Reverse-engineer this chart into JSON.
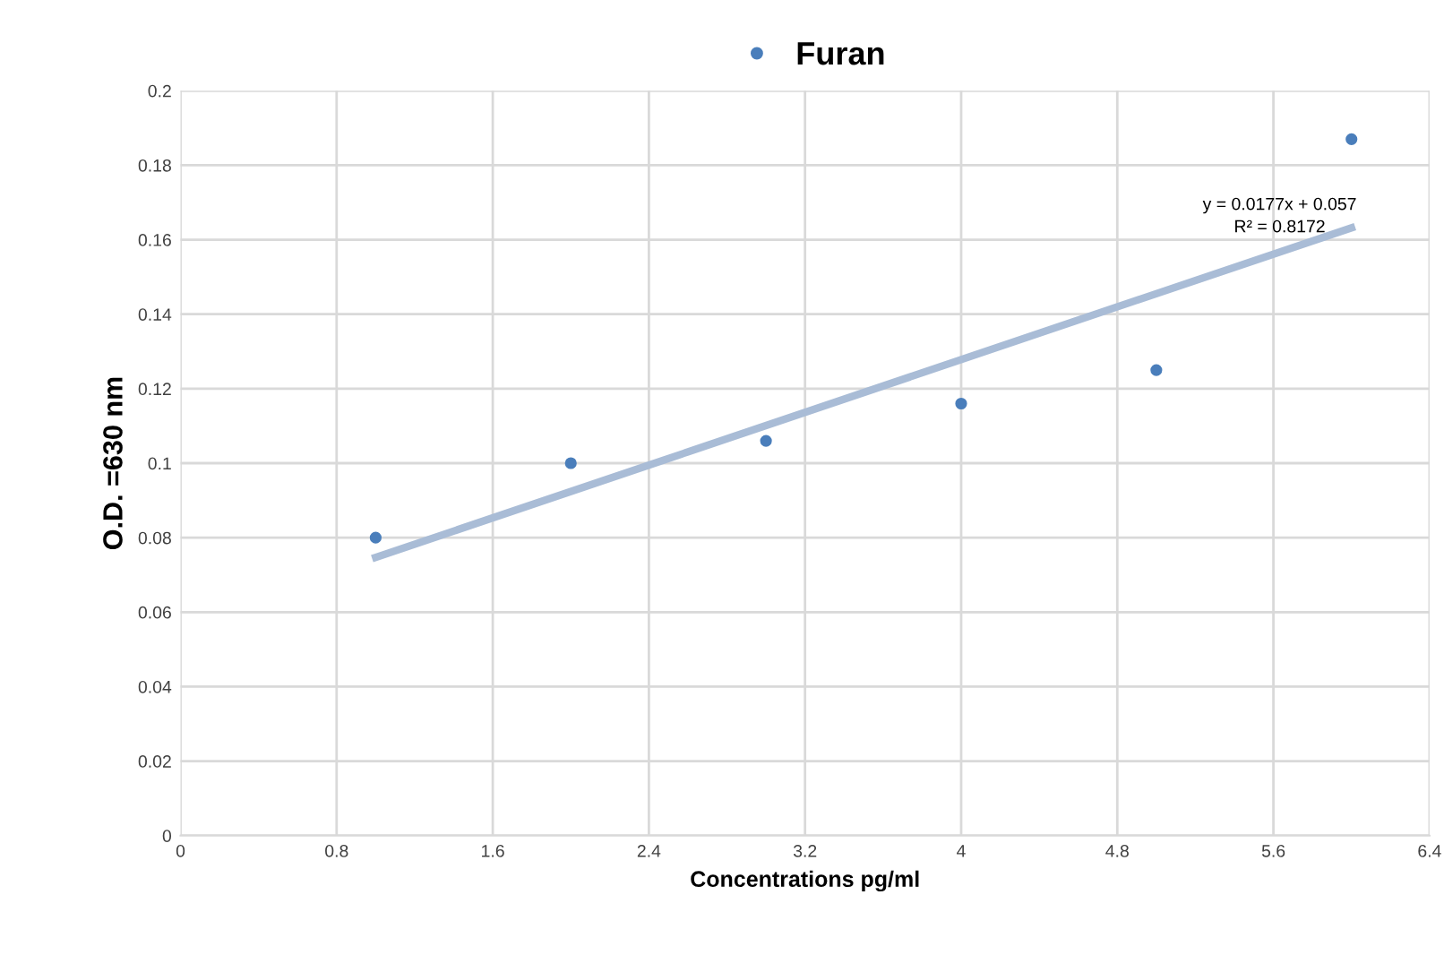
{
  "chart_data": {
    "type": "scatter",
    "xlabel": "Concentrations pg/ml",
    "ylabel": "O.D. =630 nm",
    "xlim": [
      0,
      6.4
    ],
    "xticks": [
      0,
      0.8,
      1.6,
      2.4,
      3.2,
      4,
      4.8,
      5.6,
      6.4
    ],
    "ylim": [
      0,
      0.2
    ],
    "yticks": [
      0,
      0.02,
      0.04,
      0.06,
      0.08,
      0.1,
      0.12,
      0.14,
      0.16,
      0.18,
      0.2
    ],
    "grid": true,
    "legend": "top",
    "series": [
      {
        "name": "Furan",
        "color": "#4a7ebb",
        "marker": "circle",
        "x": [
          1,
          2,
          3,
          4,
          5,
          6
        ],
        "values": [
          0.08,
          0.1,
          0.106,
          0.116,
          0.125,
          0.187
        ]
      },
      {
        "type": "line",
        "color": "#a9bcd6",
        "x": [
          1,
          6
        ],
        "values": [
          0.0747,
          0.1632
        ]
      }
    ],
    "annotations": [
      "y = 0.0177x + 0.057",
      "R² = 0.8172"
    ]
  }
}
